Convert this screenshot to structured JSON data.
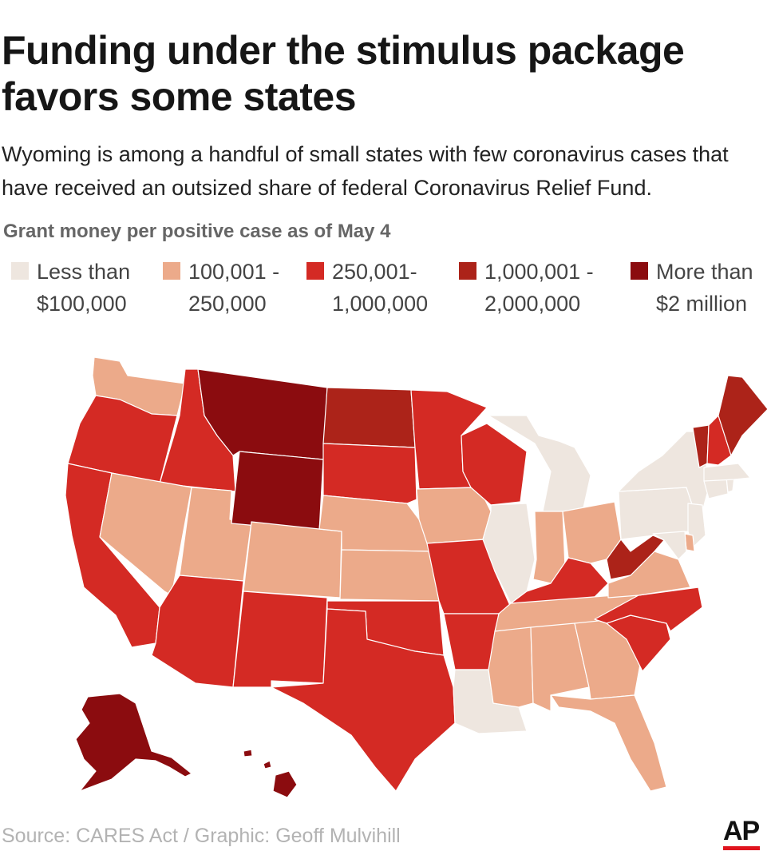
{
  "header": {
    "title": "Funding under the stimulus package favors some states",
    "subtitle": "Wyoming is among a handful of small states with few coronavirus cases that have received an outsized share of federal Coronavirus Relief Fund."
  },
  "legend": {
    "title": "Grant money per positive case as of May 4",
    "items": [
      {
        "label": "Less than\n$100,000",
        "color": "#eee6df"
      },
      {
        "label": "100,001 -\n250,000",
        "color": "#ecaa8a"
      },
      {
        "label": "250,001-\n1,000,000",
        "color": "#d42a24"
      },
      {
        "label": "1,000,001 -\n2,000,000",
        "color": "#ac2319"
      },
      {
        "label": "More than\n$2 million",
        "color": "#8b0c0f"
      }
    ]
  },
  "map": {
    "categories": {
      "WA": 1,
      "OR": 2,
      "CA": 2,
      "ID": 2,
      "NV": 1,
      "UT": 1,
      "AZ": 2,
      "MT": 4,
      "WY": 4,
      "CO": 1,
      "NM": 2,
      "ND": 3,
      "SD": 2,
      "NE": 1,
      "KS": 1,
      "OK": 2,
      "TX": 2,
      "MN": 2,
      "IA": 1,
      "MO": 2,
      "AR": 2,
      "LA": 0,
      "WI": 2,
      "IL": 0,
      "MI": 0,
      "IN": 1,
      "OH": 1,
      "KY": 2,
      "TN": 1,
      "MS": 1,
      "AL": 1,
      "GA": 1,
      "FL": 1,
      "SC": 2,
      "NC": 2,
      "VA": 1,
      "WV": 3,
      "PA": 0,
      "NY": 0,
      "NJ": 0,
      "DE": 1,
      "MD": 0,
      "CT": 0,
      "RI": 0,
      "MA": 0,
      "VT": 3,
      "NH": 2,
      "ME": 3,
      "AK": 4,
      "HI": 4
    }
  },
  "footer": {
    "source": "Source: CARES Act  / Graphic: Geoff Mulvihill",
    "logo": "AP"
  }
}
